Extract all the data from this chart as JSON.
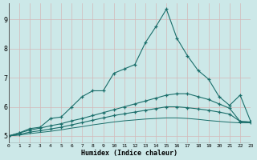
{
  "xlabel": "Humidex (Indice chaleur)",
  "bg_color": "#cce8e8",
  "grid_color": "#b8d4d4",
  "line_color": "#1a6e6a",
  "xlim": [
    0,
    23
  ],
  "ylim": [
    4.75,
    9.55
  ],
  "xtick_labels": [
    "0",
    "1",
    "2",
    "3",
    "4",
    "5",
    "6",
    "7",
    "8",
    "9",
    "10",
    "11",
    "12",
    "13",
    "14",
    "15",
    "16",
    "17",
    "18",
    "19",
    "20",
    "21",
    "22",
    "23"
  ],
  "ytick_vals": [
    5,
    6,
    7,
    8,
    9
  ],
  "line1_y": [
    5.0,
    5.1,
    5.25,
    5.3,
    5.6,
    5.65,
    6.0,
    6.35,
    6.55,
    6.55,
    7.15,
    7.3,
    7.45,
    8.2,
    8.75,
    9.35,
    8.35,
    7.75,
    7.25,
    6.95,
    6.35,
    6.05,
    6.4,
    5.5
  ],
  "line2_y": [
    5.0,
    5.1,
    5.2,
    5.27,
    5.35,
    5.42,
    5.52,
    5.6,
    5.7,
    5.8,
    5.9,
    6.0,
    6.1,
    6.2,
    6.3,
    6.4,
    6.45,
    6.45,
    6.35,
    6.25,
    6.1,
    5.95,
    5.5,
    5.48
  ],
  "line3_y": [
    5.0,
    5.05,
    5.13,
    5.18,
    5.24,
    5.3,
    5.38,
    5.46,
    5.54,
    5.62,
    5.7,
    5.76,
    5.82,
    5.88,
    5.94,
    6.0,
    6.0,
    5.97,
    5.93,
    5.88,
    5.82,
    5.75,
    5.5,
    5.47
  ],
  "line4_y": [
    5.0,
    5.03,
    5.08,
    5.12,
    5.16,
    5.21,
    5.27,
    5.32,
    5.38,
    5.43,
    5.48,
    5.52,
    5.55,
    5.58,
    5.6,
    5.62,
    5.62,
    5.6,
    5.57,
    5.53,
    5.5,
    5.47,
    5.45,
    5.45
  ]
}
